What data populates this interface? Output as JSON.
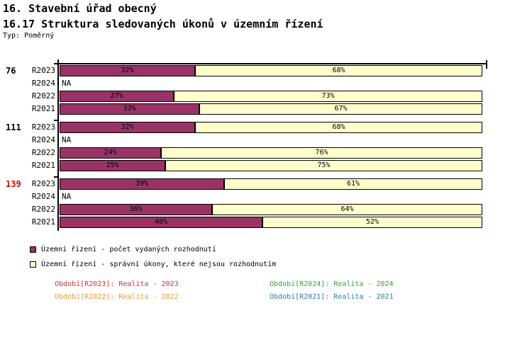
{
  "header": {
    "title": "16. Stavební úřad obecný",
    "subtitle": "16.17 Struktura sledovaných úkonů v územním řízení",
    "type_label": "Typ: Poměrný"
  },
  "chart_data": {
    "type": "bar",
    "orientation": "horizontal",
    "stacked": true,
    "value_unit": "%",
    "xlim": [
      0,
      100
    ],
    "title": "16.17 Struktura sledovaných úkonů v územním řízení",
    "row_categories": [
      "R2023",
      "R2024",
      "R2022",
      "R2021"
    ],
    "na_label": "NA",
    "series": [
      {
        "name": "Územní řízení - počet vydaných rozhodnutí",
        "color": "#993366"
      },
      {
        "name": "Územní řízení - správní úkony, které nejsou rozhodnutím",
        "color": "#FFFFCC"
      }
    ],
    "groups": [
      {
        "count_label": "76",
        "count_color": "#000000",
        "rows": [
          {
            "period": "R2023",
            "values": [
              32,
              68
            ]
          },
          {
            "period": "R2024",
            "values": null
          },
          {
            "period": "R2022",
            "values": [
              27,
              73
            ]
          },
          {
            "period": "R2021",
            "values": [
              33,
              67
            ]
          }
        ]
      },
      {
        "count_label": "111",
        "count_color": "#000000",
        "rows": [
          {
            "period": "R2023",
            "values": [
              32,
              68
            ]
          },
          {
            "period": "R2024",
            "values": null
          },
          {
            "period": "R2022",
            "values": [
              24,
              76
            ]
          },
          {
            "period": "R2021",
            "values": [
              25,
              75
            ]
          }
        ]
      },
      {
        "count_label": "139",
        "count_color": "#DD0000",
        "rows": [
          {
            "period": "R2023",
            "values": [
              39,
              61
            ]
          },
          {
            "period": "R2024",
            "values": null
          },
          {
            "period": "R2022",
            "values": [
              36,
              64
            ]
          },
          {
            "period": "R2021",
            "values": [
              48,
              52
            ]
          }
        ]
      }
    ]
  },
  "legend": {
    "items": [
      {
        "color": "#993366",
        "label": "Územní řízení - počet vydaných rozhodnutí"
      },
      {
        "color": "#FFFFCC",
        "label": "Územní řízení - správní úkony, které nejsou rozhodnutím"
      }
    ]
  },
  "periods": [
    {
      "label": "Období[R2023]: Realita - 2023",
      "color": "#CC3333"
    },
    {
      "label": "Období[R2024]: Realita - 2024",
      "color": "#33A333"
    },
    {
      "label": "Období[R2022]: Realita - 2022",
      "color": "#EE9933"
    },
    {
      "label": "Období[R2021]: Realita - 2021",
      "color": "#3377AA"
    }
  ]
}
